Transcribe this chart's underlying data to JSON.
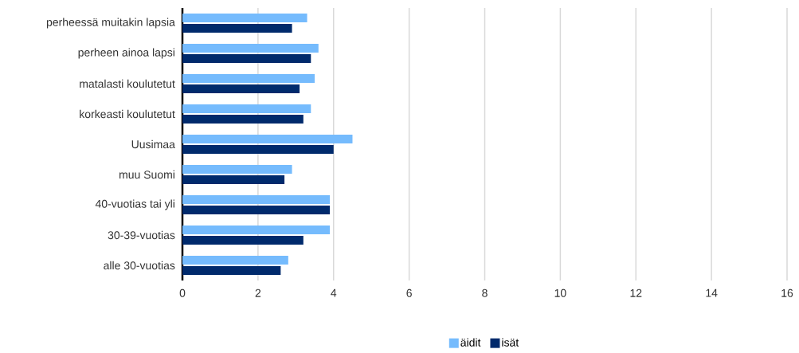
{
  "chart_data": {
    "type": "bar",
    "orientation": "horizontal",
    "categories": [
      "perheessä muitakin lapsia",
      "perheen ainoa lapsi",
      "matalasti koulutetut",
      "korkeasti koulutetut",
      "Uusimaa",
      "muu Suomi",
      "40-vuotias tai yli",
      "30-39-vuotias",
      "alle 30-vuotias"
    ],
    "series": [
      {
        "name": "äidit",
        "color": "#75bbfd",
        "values": [
          3.3,
          3.6,
          3.5,
          3.4,
          4.5,
          2.9,
          3.9,
          3.9,
          2.8
        ]
      },
      {
        "name": "isät",
        "color": "#002a6c",
        "values": [
          2.9,
          3.4,
          3.1,
          3.2,
          4.0,
          2.7,
          3.9,
          3.2,
          2.6
        ]
      }
    ],
    "xlim": [
      0,
      16
    ],
    "xticks": [
      0,
      2,
      4,
      6,
      8,
      10,
      12,
      14,
      16
    ],
    "grid": "x",
    "legend": "bottom"
  }
}
